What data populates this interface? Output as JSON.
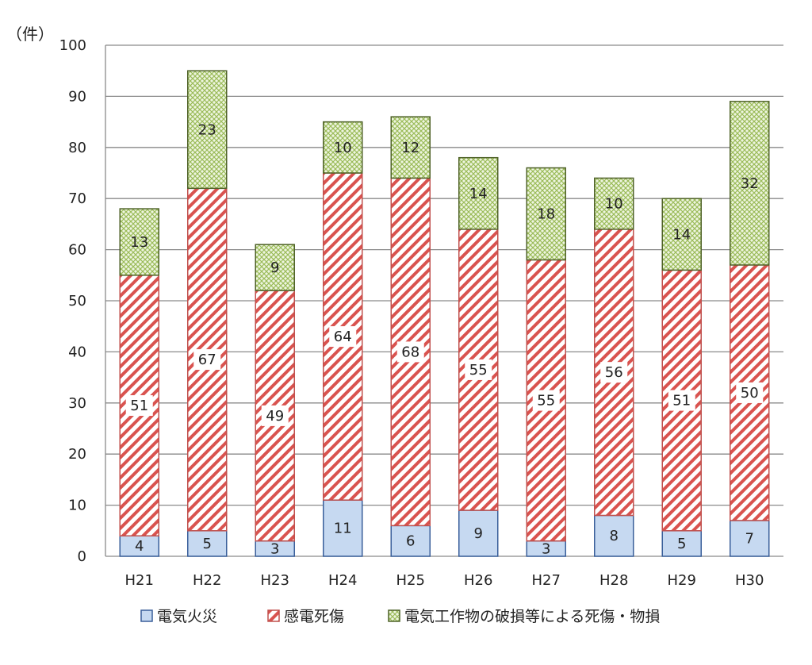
{
  "chart_data": {
    "type": "bar",
    "stacked": true,
    "title": "",
    "unit_label": "（件）",
    "xlabel": "",
    "ylabel": "",
    "ylim": [
      0,
      100
    ],
    "yticks": [
      0,
      10,
      20,
      30,
      40,
      50,
      60,
      70,
      80,
      90,
      100
    ],
    "grid": true,
    "legend_position": "bottom",
    "categories": [
      "H21",
      "H22",
      "H23",
      "H24",
      "H25",
      "H26",
      "H27",
      "H28",
      "H29",
      "H30"
    ],
    "series": [
      {
        "name": "電気火災",
        "values": [
          4,
          5,
          3,
          11,
          6,
          9,
          3,
          8,
          5,
          7
        ],
        "color": "#c6d9f1",
        "edge": "#3a5f9a",
        "pattern": "solid"
      },
      {
        "name": "感電死傷",
        "values": [
          51,
          67,
          49,
          64,
          68,
          55,
          55,
          56,
          51,
          50
        ],
        "color": "#d9534f",
        "edge": "#c0504d",
        "pattern": "diagonal"
      },
      {
        "name": "電気工作物の破損等による死傷・物損",
        "values": [
          13,
          23,
          9,
          10,
          12,
          14,
          18,
          10,
          14,
          32
        ],
        "color": "#9bbb59",
        "edge": "#4f6228",
        "pattern": "crosshatch"
      }
    ]
  }
}
